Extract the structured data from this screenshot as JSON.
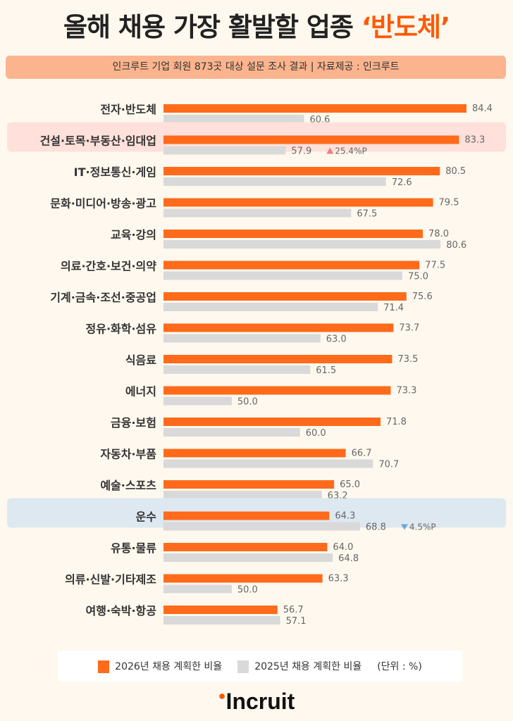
{
  "title": {
    "main": "올해 채용 가장 활발할 업종 ",
    "highlight": "‘반도체’"
  },
  "subtitle": "인크루트 기업 회원 873곳 대상 설문 조사 결과 | 자료제공 : 인크루트",
  "colors": {
    "series2026": "#ff6b1a",
    "series2025": "#d9d9d9",
    "highlight_up": "#ffe0da",
    "highlight_down": "#dde8f0",
    "up_marker": "#f08080",
    "down_marker": "#6fa8dc"
  },
  "chart_data": {
    "type": "bar",
    "orientation": "horizontal",
    "categories": [
      "전자·반도체",
      "건설·토목·부동산·임대업",
      "IT·정보통신·게임",
      "문화·미디어·방송·광고",
      "교육·강의",
      "의료·간호·보건·의약",
      "기계·금속·조선·중공업",
      "정유·화학·섬유",
      "식음료",
      "에너지",
      "금융·보험",
      "자동차·부품",
      "예술·스포츠",
      "운수",
      "유통·물류",
      "의류·신발·기타제조",
      "여행·숙박·항공"
    ],
    "series": [
      {
        "name": "2026년 채용 계획한 비율",
        "values": [
          84.4,
          83.3,
          80.5,
          79.5,
          78.0,
          77.5,
          75.6,
          73.7,
          73.5,
          73.3,
          71.8,
          66.7,
          65.0,
          64.3,
          64.0,
          63.3,
          56.7
        ]
      },
      {
        "name": "2025년 채용 계획한 비율",
        "values": [
          60.6,
          57.9,
          72.6,
          67.5,
          80.6,
          75.0,
          71.4,
          63.0,
          61.5,
          50.0,
          60.0,
          70.7,
          63.2,
          68.8,
          64.8,
          50.0,
          57.1
        ]
      }
    ],
    "annotations": [
      {
        "category": "건설·토목·부동산·임대업",
        "text": "25.4%P",
        "direction": "up"
      },
      {
        "category": "운수",
        "text": "4.5%P",
        "direction": "down"
      }
    ],
    "unit": "(단위 : %)",
    "legend": "bottom",
    "grid": false
  },
  "logo": "Incruit"
}
